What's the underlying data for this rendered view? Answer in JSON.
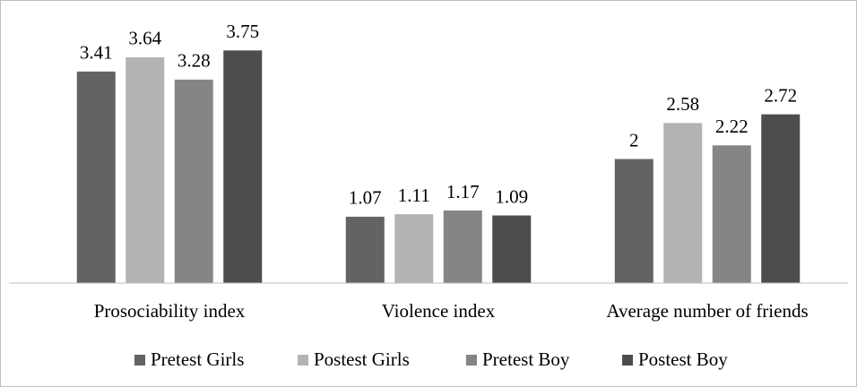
{
  "chart_data": {
    "type": "bar",
    "categories": [
      "Prosociability index",
      "Violence index",
      "Average number of friends"
    ],
    "series": [
      {
        "name": "Pretest Girls",
        "color": "#636363",
        "values": [
          3.41,
          1.07,
          2
        ]
      },
      {
        "name": "Postest Girls",
        "color": "#b3b3b3",
        "values": [
          3.64,
          1.11,
          2.58
        ]
      },
      {
        "name": "Pretest Boy",
        "color": "#858585",
        "values": [
          3.28,
          1.17,
          2.22
        ]
      },
      {
        "name": "Postest Boy",
        "color": "#4d4d4d",
        "values": [
          3.75,
          1.09,
          2.72
        ]
      }
    ],
    "ylim": [
      0,
      4
    ],
    "legend": "bottom"
  }
}
